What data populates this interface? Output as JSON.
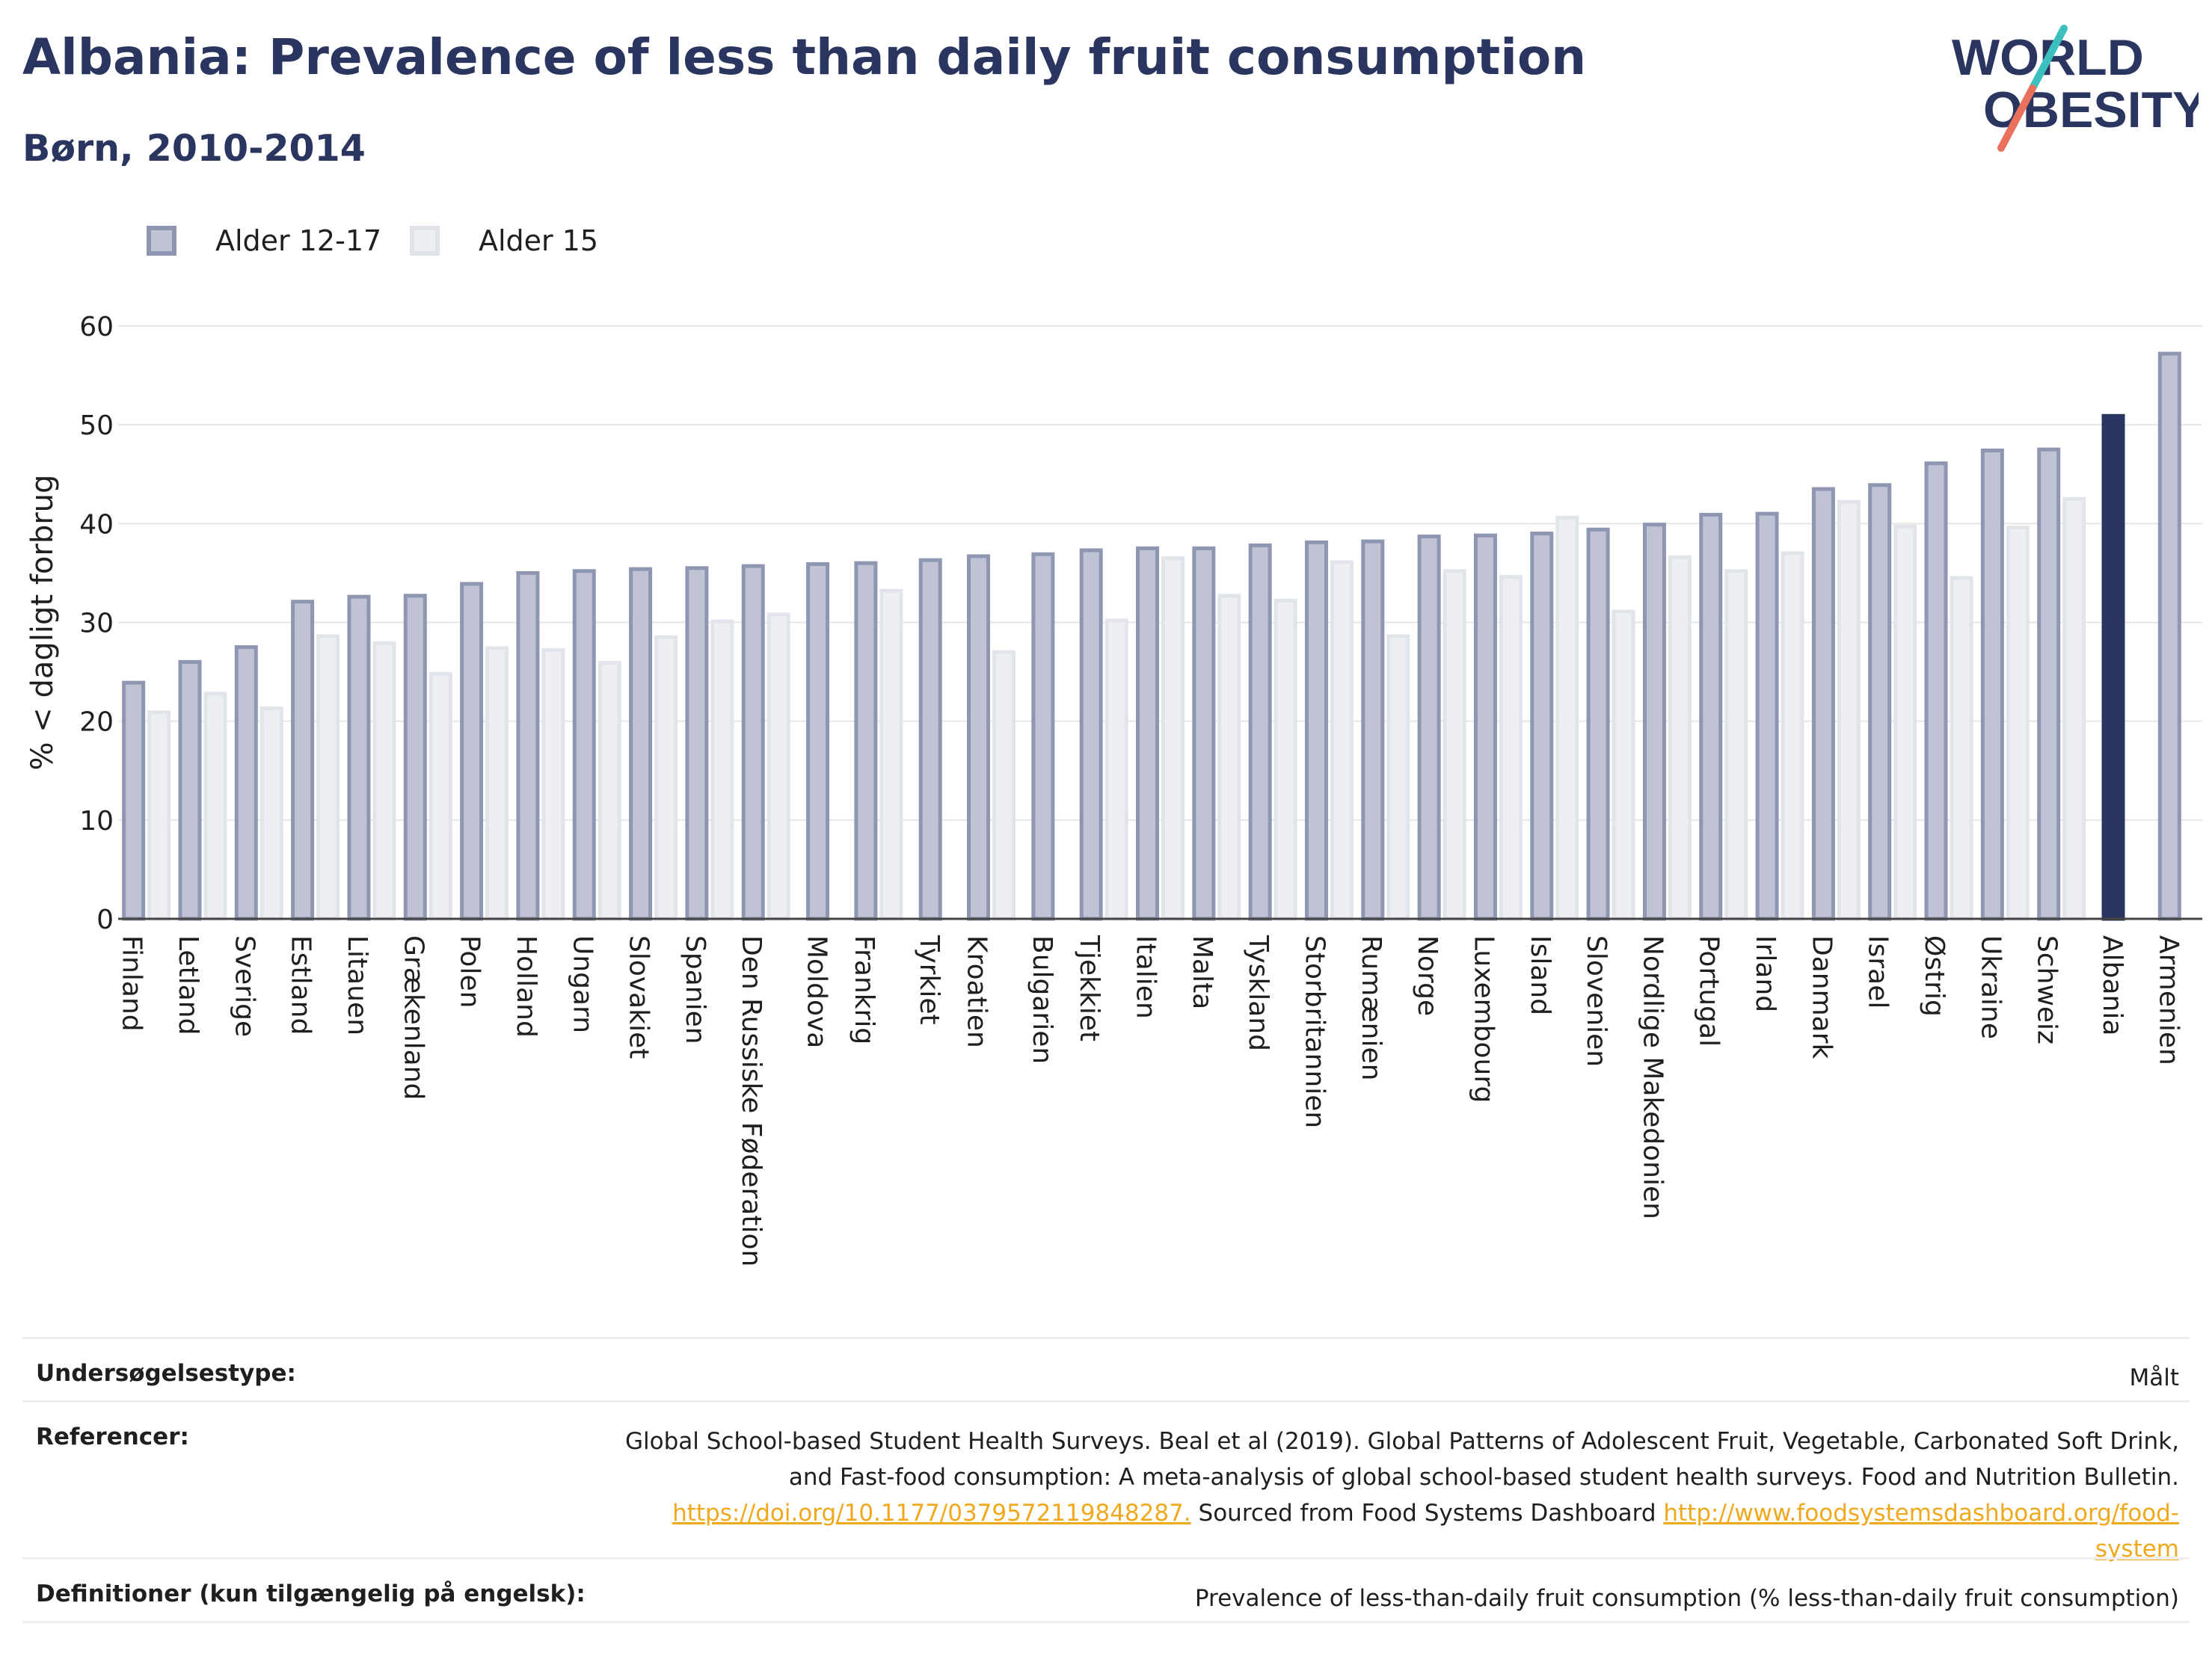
{
  "header": {
    "title": "Albania: Prevalence of less than daily fruit consumption",
    "subtitle": "Børn, 2010-2014"
  },
  "logo": {
    "line1": "WORLD",
    "line2": "OBESITY",
    "brand_colors": [
      "#2b3660",
      "#e8705c",
      "#3bbfbf"
    ]
  },
  "legend": [
    {
      "label": "Alder 12-17",
      "fill": "#bfc3d3",
      "stroke": "#8f96b1"
    },
    {
      "label": "Alder 15",
      "fill": "#eeeff3",
      "stroke": "#e1e3ea"
    }
  ],
  "colors": {
    "highlight": "#2b3660",
    "primary_fill": "#bfc3d3",
    "primary_stroke": "#8f96b1",
    "secondary_fill": "#eeeff3",
    "secondary_stroke": "#e2e4eb",
    "grid": "#e6e6e6",
    "axis_text": "#1f1f1f"
  },
  "chart_data": {
    "type": "bar",
    "title": "Albania: Prevalence of less than daily fruit consumption",
    "subtitle": "Børn, 2010-2014",
    "xlabel": "",
    "ylabel": "% < dagligt forbrug",
    "ylim": [
      0,
      60
    ],
    "yticks": [
      0,
      10,
      20,
      30,
      40,
      50,
      60
    ],
    "grid": true,
    "legend_position": "top-left",
    "highlight_category": "Albania",
    "categories": [
      "Finland",
      "Letland",
      "Sverige",
      "Estland",
      "Litauen",
      "Grækenland",
      "Polen",
      "Holland",
      "Ungarn",
      "Slovakiet",
      "Spanien",
      "Den Russiske Føderation",
      "Moldova",
      "Frankrig",
      "Tyrkiet",
      "Kroatien",
      "Bulgarien",
      "Tjekkiet",
      "Italien",
      "Malta",
      "Tyskland",
      "Storbritannien",
      "Rumænien",
      "Norge",
      "Luxembourg",
      "Island",
      "Slovenien",
      "Nordlige Makedonien",
      "Portugal",
      "Irland",
      "Danmark",
      "Israel",
      "Østrig",
      "Ukraine",
      "Schweiz",
      "Albania",
      "Armenien"
    ],
    "series": [
      {
        "name": "Alder 12-17",
        "values": [
          23.9,
          26.0,
          27.5,
          32.1,
          32.6,
          32.7,
          33.9,
          35.0,
          35.2,
          35.4,
          35.5,
          35.7,
          35.9,
          36.0,
          36.3,
          36.7,
          36.9,
          37.3,
          37.5,
          37.5,
          37.8,
          38.1,
          38.2,
          38.7,
          38.8,
          39.0,
          39.4,
          39.9,
          40.9,
          41.0,
          43.5,
          43.9,
          46.1,
          47.4,
          47.5,
          50.9,
          57.2
        ]
      },
      {
        "name": "Alder 15",
        "values": [
          20.9,
          22.8,
          21.3,
          28.6,
          27.9,
          24.8,
          27.4,
          27.2,
          25.9,
          28.5,
          30.1,
          30.8,
          null,
          33.2,
          null,
          27.0,
          null,
          30.2,
          36.5,
          32.7,
          32.2,
          36.1,
          28.6,
          35.2,
          34.6,
          40.6,
          31.1,
          36.6,
          35.2,
          37.0,
          42.2,
          39.7,
          34.5,
          39.6,
          42.5,
          null,
          null
        ]
      }
    ]
  },
  "footer": {
    "rows": [
      {
        "label": "Undersøgelsestype:",
        "value": "Målt"
      },
      {
        "label": "Referencer:",
        "text1": "Global School-based Student Health Surveys. Beal et al (2019). Global Patterns of Adolescent Fruit, Vegetable, Carbonated Soft Drink,",
        "text2": "and Fast-food consumption: A meta-analysis of global school-based student health surveys. Food and Nutrition Bulletin.",
        "link1": "https://doi.org/10.1177/0379572119848287.",
        "text3": " Sourced from Food Systems Dashboard ",
        "link2a": "http://www.foodsystemsdashboard.org/food-",
        "link2b": "system"
      },
      {
        "label": "Definitioner (kun tilgængelig på engelsk):",
        "value": "Prevalence of less-than-daily fruit consumption (% less-than-daily fruit consumption)"
      }
    ]
  }
}
